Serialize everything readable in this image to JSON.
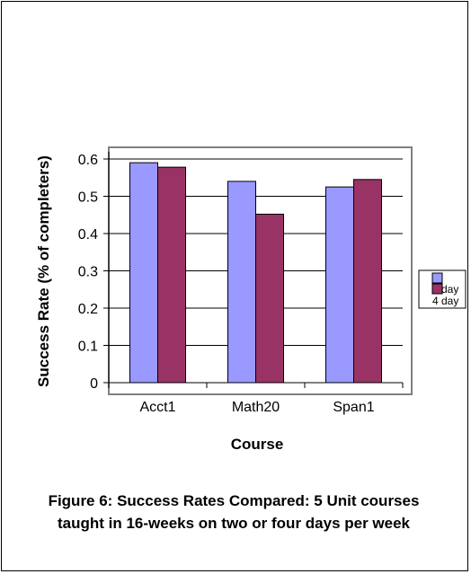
{
  "chart_data": {
    "type": "bar",
    "categories": [
      "Acct1",
      "Math20",
      "Span1"
    ],
    "series": [
      {
        "name": "2 day",
        "values": [
          0.59,
          0.54,
          0.525
        ]
      },
      {
        "name": "4 day",
        "values": [
          0.578,
          0.452,
          0.545
        ]
      }
    ],
    "xlabel": "Course",
    "ylabel": "Success Rate (% of completers)",
    "ylim": [
      0,
      0.6
    ],
    "yticks": [
      "0",
      "0.1",
      "0.2",
      "0.3",
      "0.4",
      "0.5",
      "0.6"
    ],
    "grid": true,
    "legend_position": "right",
    "colors": {
      "2 day": "#9999ff",
      "4 day": "#993366",
      "grid": "#000000",
      "plot_border": "#808080"
    }
  },
  "caption": "Figure 6: Success Rates Compared: 5 Unit courses taught in 16-weeks on two or four days per week"
}
